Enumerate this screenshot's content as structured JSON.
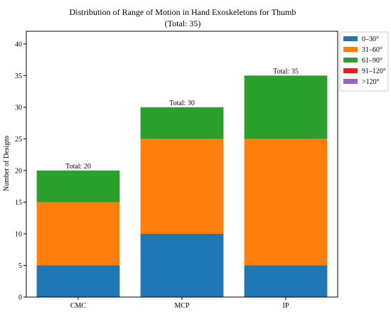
{
  "chart_data": {
    "type": "bar",
    "stacked": true,
    "title": "Distribution of Range of Motion in Hand Exoskeletons for Thumb",
    "subtitle": "(Total: 35)",
    "xlabel": "",
    "ylabel": "Number of Designs",
    "categories": [
      "CMC",
      "MCP",
      "IP"
    ],
    "ylim": [
      0,
      42
    ],
    "yticks": [
      0,
      5,
      10,
      15,
      20,
      25,
      30,
      35,
      40
    ],
    "grid": false,
    "legend_position": "top-right",
    "series": [
      {
        "name": "0–30°",
        "color": "#1f77b4",
        "values": [
          5,
          10,
          5
        ]
      },
      {
        "name": "31–60°",
        "color": "#ff7f0e",
        "values": [
          10,
          15,
          20
        ]
      },
      {
        "name": "61–90°",
        "color": "#2ca02c",
        "values": [
          5,
          5,
          10
        ]
      },
      {
        "name": "91–120°",
        "color": "#d62728",
        "values": [
          0,
          0,
          0
        ]
      },
      {
        "name": ">120°",
        "color": "#9467bd",
        "values": [
          0,
          0,
          0
        ]
      }
    ],
    "totals": [
      "Total: 20",
      "Total: 30",
      "Total: 35"
    ]
  }
}
